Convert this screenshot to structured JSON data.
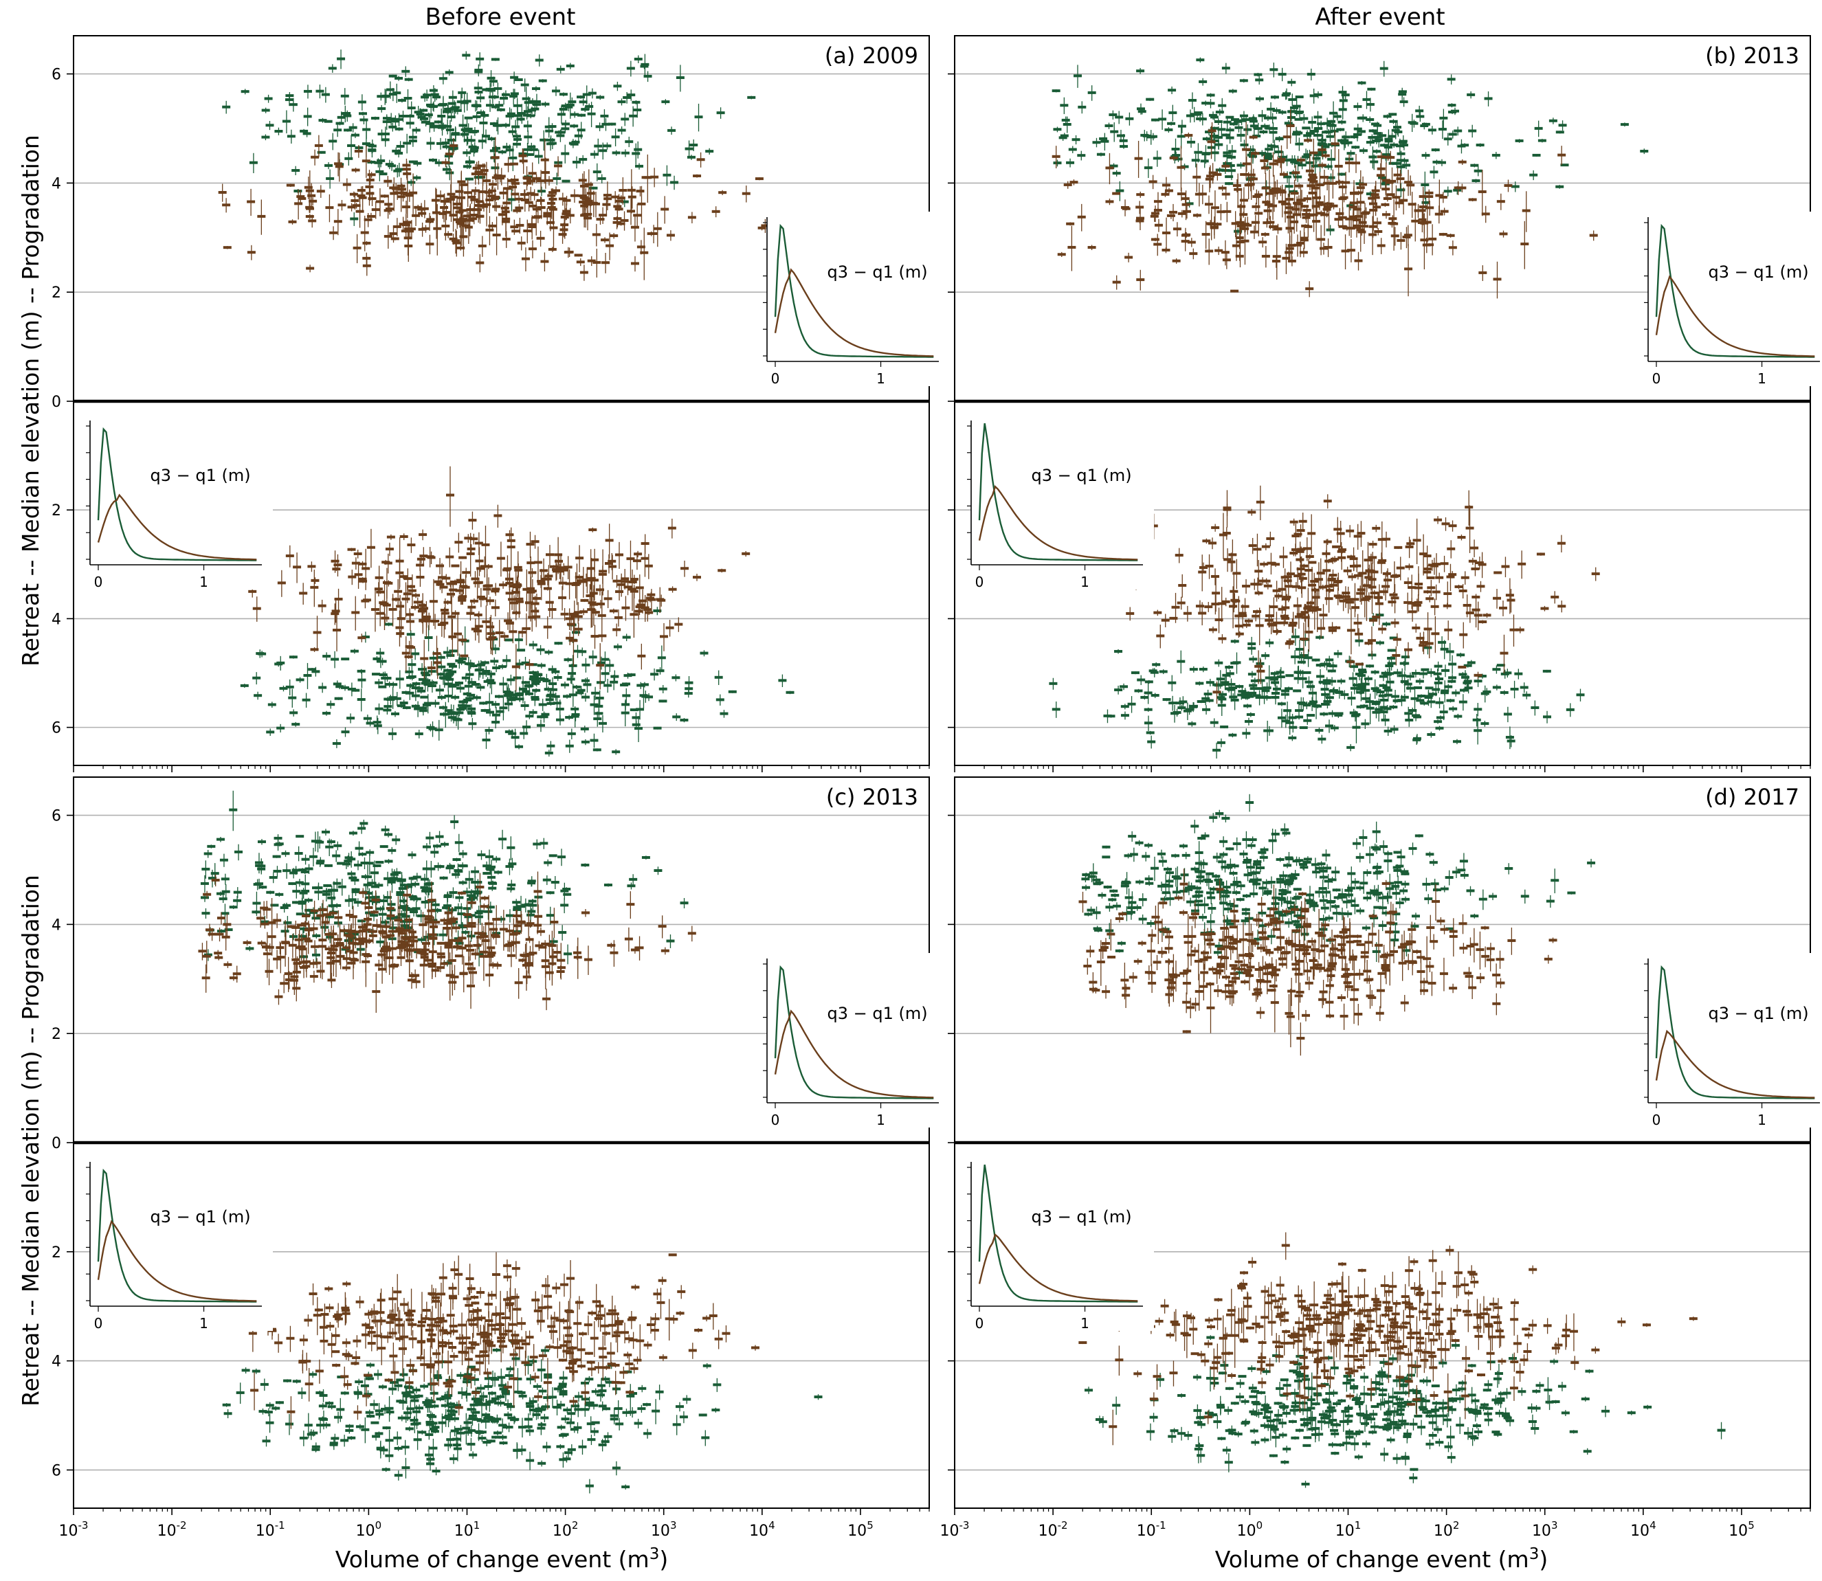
{
  "figure": {
    "column_titles": [
      "Before event",
      "After event"
    ],
    "ylabel": "Retreat -- Median elevation (m) -- Progradation",
    "xlabel_prefix": "Volume of change event (m",
    "xlabel_exp": "3",
    "xlabel_suffix": ")",
    "inset_label_text": "q3 − q1 (m)",
    "inset_xtick_labels": [
      "0",
      "1"
    ],
    "colors": {
      "progradation": "#1a5c36",
      "retreat": "#6b3f1c",
      "gridline": "#b0b0b0"
    }
  },
  "chart_data": [
    {
      "type": "scatter",
      "panel": "(a) 2009",
      "column": "Before event",
      "xscale": "log",
      "xlim": [
        0.001,
        500000
      ],
      "x_tick_labels": [
        "10^-3",
        "10^-2",
        "10^-1",
        "10^0",
        "10^1",
        "10^2",
        "10^3",
        "10^4",
        "10^5"
      ],
      "ylim_top": [
        0,
        6.7
      ],
      "ylim_bottom": [
        0,
        6.7
      ],
      "y_tick_labels_top": [
        "0",
        "2",
        "4",
        "6"
      ],
      "y_tick_labels_bottom": [
        "2",
        "4",
        "6"
      ],
      "grid": "horizontal",
      "error_bars": "vertical (q1 to q3)",
      "top_half": {
        "green_center_y": 5.0,
        "green_spread": 0.55,
        "brown_center_y": 3.6,
        "brown_spread": 0.45,
        "x_range": [
          0.03,
          80000
        ]
      },
      "bottom_half": {
        "green_center_y": 5.3,
        "green_spread": 0.45,
        "brown_center_y": 3.5,
        "brown_spread": 0.55,
        "x_range": [
          0.05,
          100000
        ]
      },
      "inset_top": {
        "green_peak_x": 0.06,
        "green_peak": 1.0,
        "brown_peak_x": 0.15,
        "brown_peak": 0.6
      },
      "inset_bottom": {
        "green_peak_x": 0.06,
        "green_peak": 1.0,
        "brown_peak_x": 0.18,
        "brown_peak": 0.45
      }
    },
    {
      "type": "scatter",
      "panel": "(b) 2013",
      "column": "After event",
      "xscale": "log",
      "xlim": [
        0.001,
        500000
      ],
      "x_tick_labels": [
        "10^-3",
        "10^-2",
        "10^-1",
        "10^0",
        "10^1",
        "10^2",
        "10^3",
        "10^4",
        "10^5"
      ],
      "ylim_top": [
        0,
        6.7
      ],
      "ylim_bottom": [
        0,
        6.7
      ],
      "grid": "horizontal",
      "error_bars": "vertical (q1 to q3)",
      "top_half": {
        "green_center_y": 4.9,
        "green_spread": 0.5,
        "brown_center_y": 3.5,
        "brown_spread": 0.55,
        "x_range": [
          0.01,
          20000
        ]
      },
      "bottom_half": {
        "green_center_y": 5.3,
        "green_spread": 0.45,
        "brown_center_y": 3.4,
        "brown_spread": 0.6,
        "x_range": [
          0.01,
          90000
        ]
      },
      "inset_top": {
        "green_peak_x": 0.06,
        "green_peak": 1.0,
        "brown_peak_x": 0.12,
        "brown_peak": 0.55
      },
      "inset_bottom": {
        "green_peak_x": 0.05,
        "green_peak": 1.0,
        "brown_peak_x": 0.15,
        "brown_peak": 0.5
      }
    },
    {
      "type": "scatter",
      "panel": "(c) 2013",
      "column": "Before event",
      "xscale": "log",
      "xlim": [
        0.001,
        500000
      ],
      "x_tick_labels": [
        "10^-3",
        "10^-2",
        "10^-1",
        "10^0",
        "10^1",
        "10^2",
        "10^3",
        "10^4",
        "10^5"
      ],
      "ylim_top": [
        0,
        6.7
      ],
      "ylim_bottom": [
        0,
        6.7
      ],
      "grid": "horizontal",
      "error_bars": "vertical (q1 to q3)",
      "top_half": {
        "green_center_y": 4.6,
        "green_spread": 0.55,
        "brown_center_y": 3.7,
        "brown_spread": 0.4,
        "x_range": [
          0.02,
          3000
        ]
      },
      "bottom_half": {
        "green_center_y": 4.9,
        "green_spread": 0.45,
        "brown_center_y": 3.5,
        "brown_spread": 0.5,
        "x_range": [
          0.02,
          100000
        ]
      },
      "inset_top": {
        "green_peak_x": 0.06,
        "green_peak": 1.0,
        "brown_peak_x": 0.15,
        "brown_peak": 0.6
      },
      "inset_bottom": {
        "green_peak_x": 0.06,
        "green_peak": 1.0,
        "brown_peak_x": 0.12,
        "brown_peak": 0.55
      }
    },
    {
      "type": "scatter",
      "panel": "(d) 2017",
      "column": "After event",
      "xscale": "log",
      "xlim": [
        0.001,
        500000
      ],
      "x_tick_labels": [
        "10^-3",
        "10^-2",
        "10^-1",
        "10^0",
        "10^1",
        "10^2",
        "10^3",
        "10^4",
        "10^5"
      ],
      "ylim_top": [
        0,
        6.7
      ],
      "ylim_bottom": [
        0,
        6.7
      ],
      "grid": "horizontal",
      "error_bars": "vertical (q1 to q3)",
      "top_half": {
        "green_center_y": 4.7,
        "green_spread": 0.5,
        "brown_center_y": 3.4,
        "brown_spread": 0.5,
        "x_range": [
          0.02,
          3000
        ]
      },
      "bottom_half": {
        "green_center_y": 4.9,
        "green_spread": 0.45,
        "brown_center_y": 3.4,
        "brown_spread": 0.55,
        "x_range": [
          0.02,
          100000
        ]
      },
      "inset_top": {
        "green_peak_x": 0.06,
        "green_peak": 1.0,
        "brown_peak_x": 0.1,
        "brown_peak": 0.45
      },
      "inset_bottom": {
        "green_peak_x": 0.05,
        "green_peak": 1.0,
        "brown_peak_x": 0.15,
        "brown_peak": 0.45
      }
    }
  ]
}
